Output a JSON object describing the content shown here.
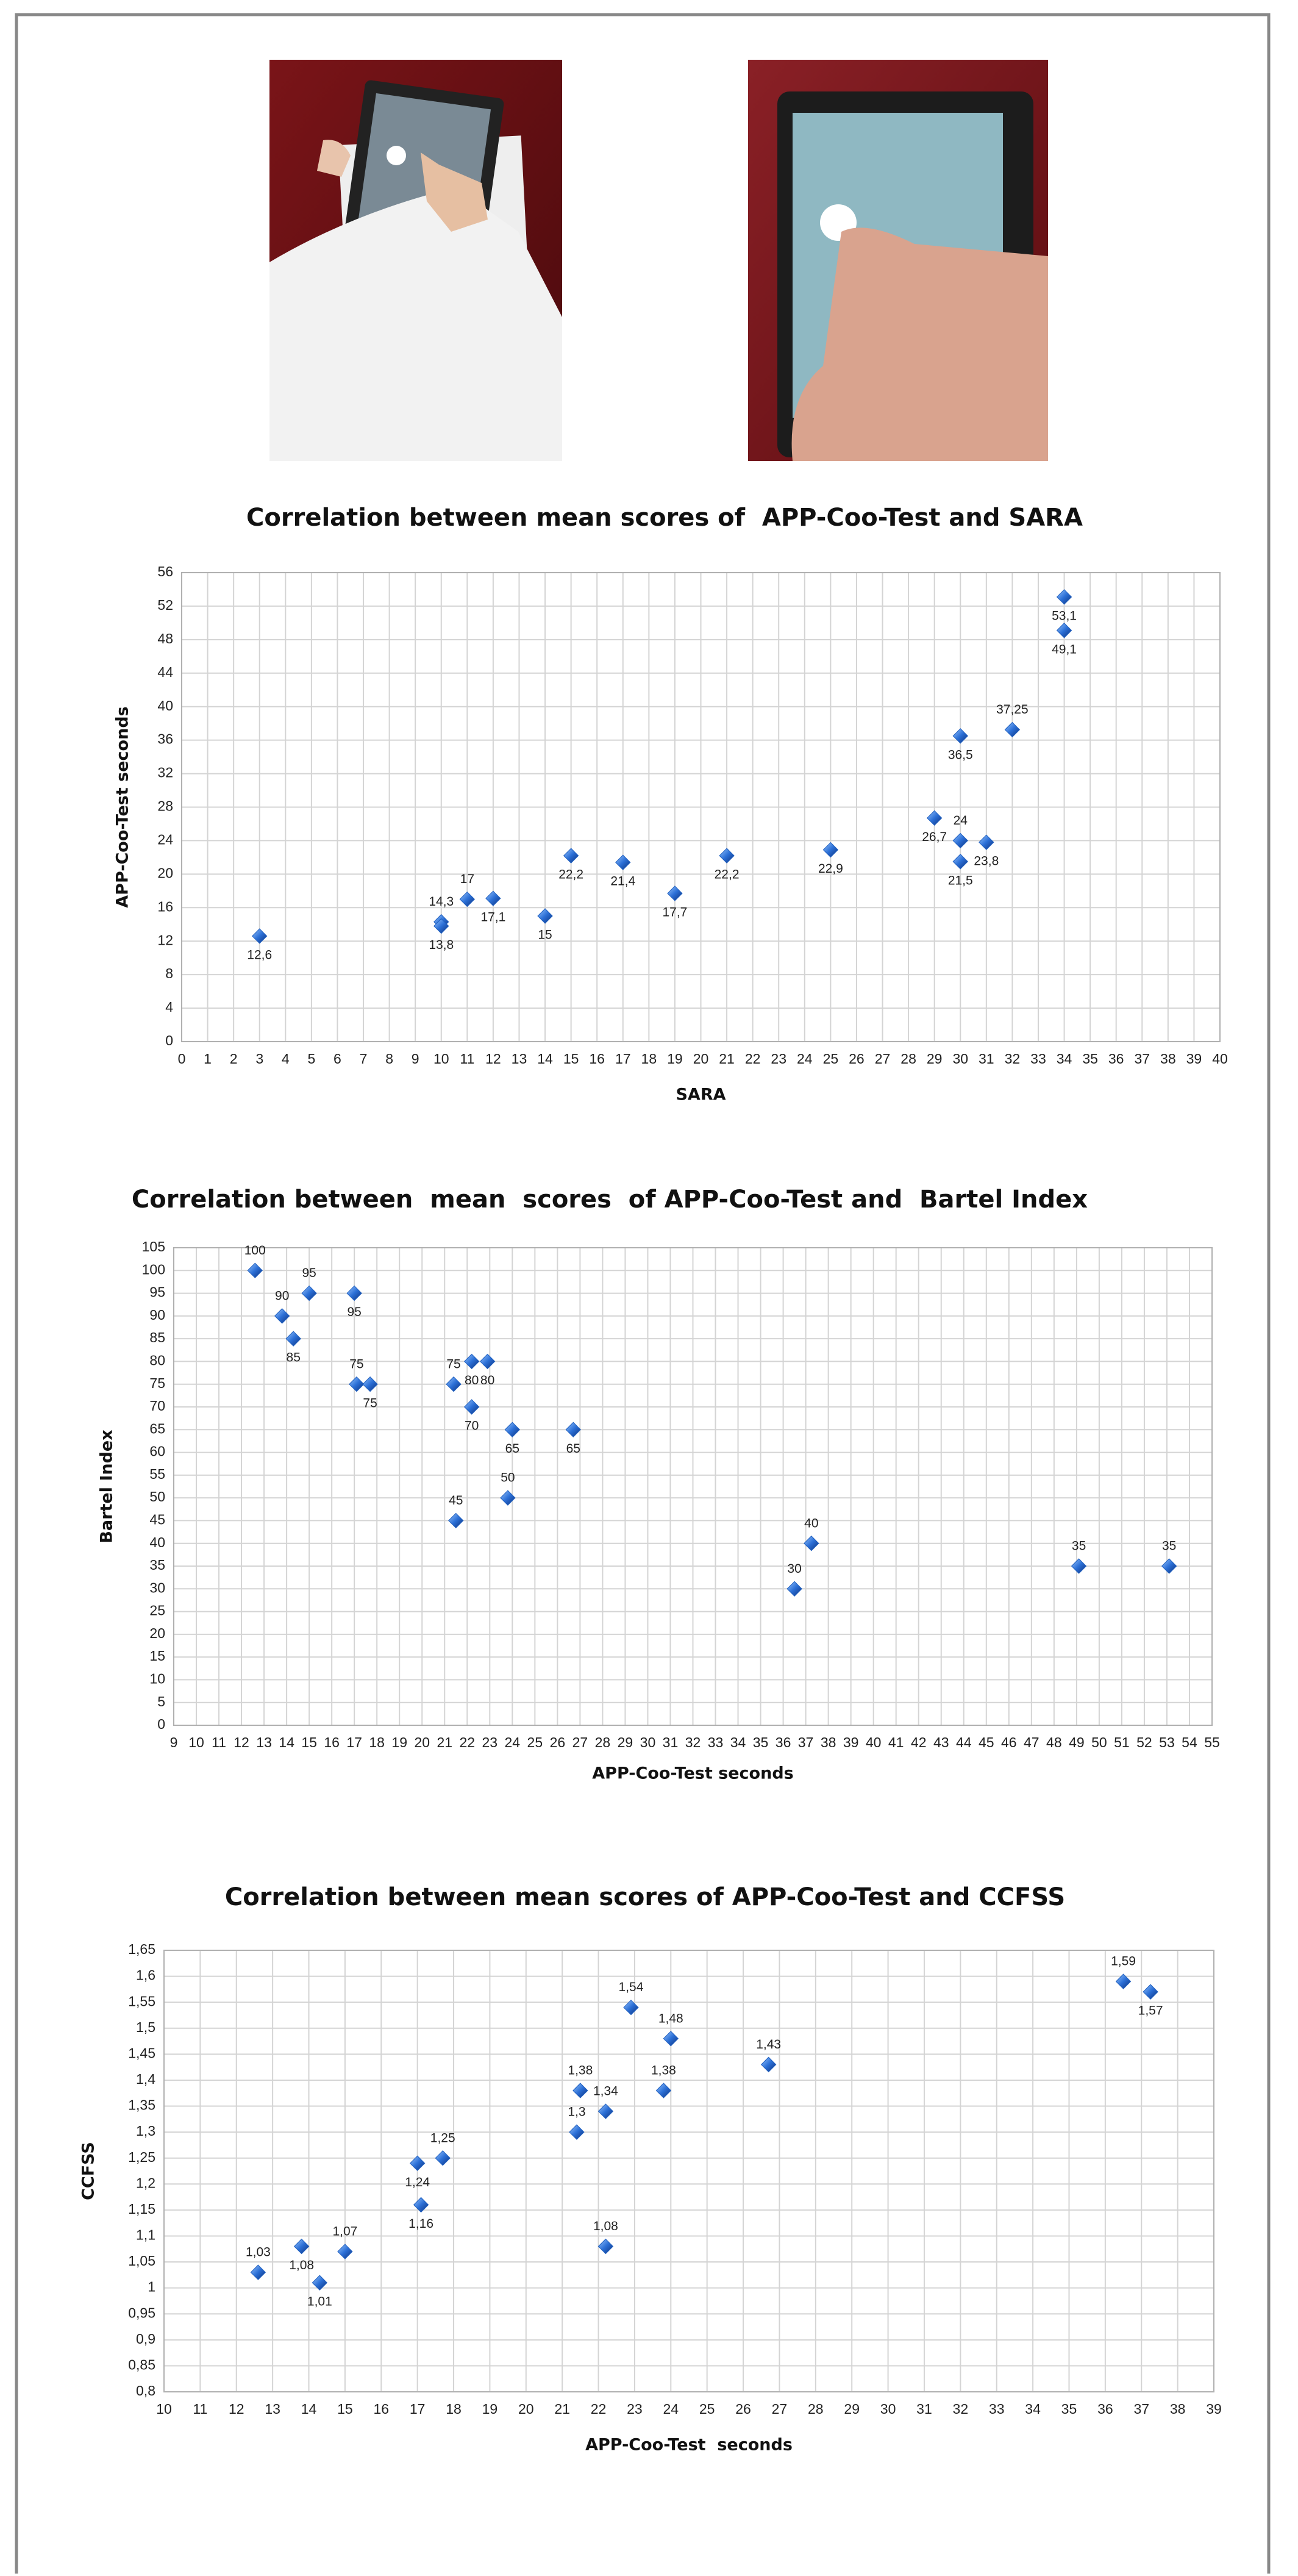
{
  "chart_data": [
    {
      "type": "scatter",
      "title": "Correlation between mean scores of  APP-Coo-Test and SARA",
      "x_label": "SARA",
      "y_label": "APP-Coo-Test seconds",
      "color": "#1f5fbf",
      "grid": true,
      "x": [
        3,
        10,
        10,
        11,
        12,
        14,
        15,
        17,
        19,
        21,
        25,
        29,
        30,
        30,
        30,
        31,
        32,
        34,
        34
      ],
      "values": [
        12.6,
        14.3,
        13.8,
        17,
        17.1,
        15,
        22.2,
        21.4,
        17.7,
        22.2,
        22.9,
        26.7,
        36.5,
        24,
        21.5,
        23.8,
        37.25,
        53.1,
        49.1
      ],
      "value_labels": [
        "12,6",
        "14,3",
        "13,8",
        "17",
        "17,1",
        "15",
        "22,2",
        "21,4",
        "17,7",
        "22,2",
        "22,9",
        "26,7",
        "36,5",
        "24",
        "21,5",
        "23,8",
        "37,25",
        "53,1",
        "49,1"
      ],
      "xlim": [
        0,
        40
      ],
      "xticks": [
        0,
        1,
        2,
        3,
        4,
        5,
        6,
        7,
        8,
        9,
        10,
        11,
        12,
        13,
        14,
        15,
        16,
        17,
        18,
        19,
        20,
        21,
        22,
        23,
        24,
        25,
        26,
        27,
        28,
        29,
        30,
        31,
        32,
        33,
        34,
        35,
        36,
        37,
        38,
        39,
        40
      ],
      "ylim": [
        0,
        56
      ],
      "yticks": [
        0,
        4,
        8,
        12,
        16,
        20,
        24,
        28,
        32,
        36,
        40,
        44,
        48,
        52,
        56
      ]
    },
    {
      "type": "scatter",
      "title": "Correlation between  mean  scores  of APP-Coo-Test and  Bartel Index",
      "x_label": "APP-Coo-Test seconds",
      "y_label": "Bartel Index",
      "color": "#1f5fbf",
      "grid": true,
      "x": [
        12.6,
        13.8,
        14.3,
        15,
        17,
        17.1,
        17.7,
        21.4,
        22.2,
        22.9,
        22.2,
        21.5,
        24,
        23.8,
        26.7,
        36.5,
        37.25,
        49.1,
        53.1
      ],
      "values": [
        100,
        90,
        85,
        95,
        95,
        75,
        75,
        75,
        80,
        80,
        70,
        45,
        65,
        50,
        65,
        30,
        40,
        35,
        35
      ],
      "xlim": [
        9,
        55
      ],
      "xticks": [
        9,
        10,
        11,
        12,
        13,
        14,
        15,
        16,
        17,
        18,
        19,
        20,
        21,
        22,
        23,
        24,
        25,
        26,
        27,
        28,
        29,
        30,
        31,
        32,
        33,
        34,
        35,
        36,
        37,
        38,
        39,
        40,
        41,
        42,
        43,
        44,
        45,
        46,
        47,
        48,
        49,
        50,
        51,
        52,
        53,
        54,
        55
      ],
      "ylim": [
        0,
        105
      ],
      "yticks": [
        0,
        5,
        10,
        15,
        20,
        25,
        30,
        35,
        40,
        45,
        50,
        55,
        60,
        65,
        70,
        75,
        80,
        85,
        90,
        95,
        100,
        105
      ]
    },
    {
      "type": "scatter",
      "title": "Correlation between mean scores of APP-Coo-Test and CCFSS",
      "x_label": "APP-Coo-Test  seconds",
      "y_label": "CCFSS",
      "color": "#1f5fbf",
      "grid": true,
      "x": [
        12.6,
        13.8,
        14.3,
        15,
        17,
        17.1,
        17.7,
        21.4,
        21.5,
        22.2,
        22.2,
        22.9,
        23.8,
        24,
        26.7,
        36.5,
        37.25
      ],
      "values": [
        1.03,
        1.08,
        1.01,
        1.07,
        1.24,
        1.16,
        1.25,
        1.3,
        1.38,
        1.34,
        1.08,
        1.54,
        1.38,
        1.48,
        1.43,
        1.59,
        1.57
      ],
      "value_labels": [
        "1,03",
        "1,08",
        "1,01",
        "1,07",
        "1,24",
        "1,16",
        "1,25",
        "1,3",
        "1,38",
        "1,34",
        "1,08",
        "1,54",
        "1,38",
        "1,48",
        "1,43",
        "1,59",
        "1,57"
      ],
      "xlim": [
        10,
        39
      ],
      "xticks": [
        10,
        11,
        12,
        13,
        14,
        15,
        16,
        17,
        18,
        19,
        20,
        21,
        22,
        23,
        24,
        25,
        26,
        27,
        28,
        29,
        30,
        31,
        32,
        33,
        34,
        35,
        36,
        37,
        38,
        39
      ],
      "ylim": [
        0.8,
        1.65
      ],
      "yticks": [
        {
          "value": 0.8,
          "label": "0,8"
        },
        {
          "value": 0.85,
          "label": "0,85"
        },
        {
          "value": 0.9,
          "label": "0,9"
        },
        {
          "value": 0.95,
          "label": "0,95"
        },
        1,
        {
          "value": 1.05,
          "label": "1,05"
        },
        {
          "value": 1.1,
          "label": "1,1"
        },
        {
          "value": 1.15,
          "label": "1,15"
        },
        {
          "value": 1.2,
          "label": "1,2"
        },
        {
          "value": 1.25,
          "label": "1,25"
        },
        {
          "value": 1.3,
          "label": "1,3"
        },
        {
          "value": 1.35,
          "label": "1,35"
        },
        {
          "value": 1.4,
          "label": "1,4"
        },
        {
          "value": 1.45,
          "label": "1,45"
        },
        {
          "value": 1.5,
          "label": "1,5"
        },
        {
          "value": 1.55,
          "label": "1,55"
        },
        {
          "value": 1.6,
          "label": "1,6"
        },
        {
          "value": 1.65,
          "label": "1,65"
        }
      ]
    }
  ]
}
